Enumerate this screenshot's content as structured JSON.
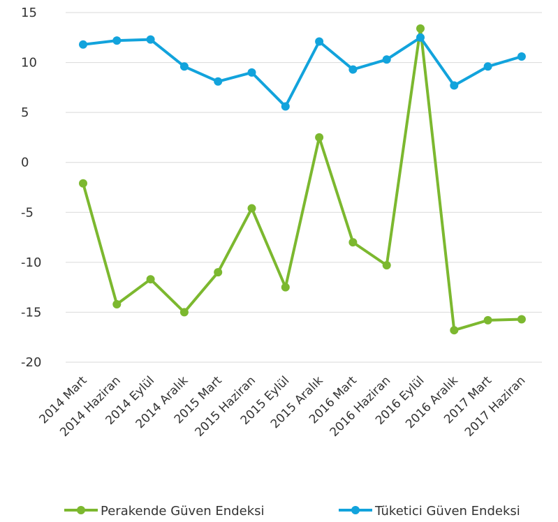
{
  "chart_data": {
    "type": "line",
    "title": "",
    "xlabel": "",
    "ylabel": "",
    "categories": [
      "2014 Mart",
      "2014 Haziran",
      "2014 Eylül",
      "2014 Aralık",
      "2015 Mart",
      "2015 Haziran",
      "2015 Eylül",
      "2015 Aralık",
      "2016 Mart",
      "2016 Haziran",
      "2016 Eylül",
      "2016 Aralık",
      "2017 Mart",
      "2017 Haziran"
    ],
    "ylim": [
      -20,
      15
    ],
    "yticks": [
      15,
      10,
      5,
      0,
      -5,
      -10,
      -15,
      -20
    ],
    "grid": true,
    "legend_position": "bottom",
    "series": [
      {
        "name": "Perakende Güven Endeksi",
        "color": "#7cb82f",
        "values": [
          -2.1,
          -14.2,
          -11.7,
          -15.0,
          -11.0,
          -4.6,
          -12.5,
          2.5,
          -8.0,
          -10.3,
          13.4,
          -16.8,
          -15.8,
          -15.7
        ]
      },
      {
        "name": "Tüketici Güven Endeksi",
        "color": "#12a3dc",
        "values": [
          11.8,
          12.2,
          12.3,
          9.6,
          8.1,
          9.0,
          5.6,
          12.1,
          9.3,
          10.3,
          12.5,
          7.7,
          9.6,
          10.6
        ]
      }
    ]
  }
}
